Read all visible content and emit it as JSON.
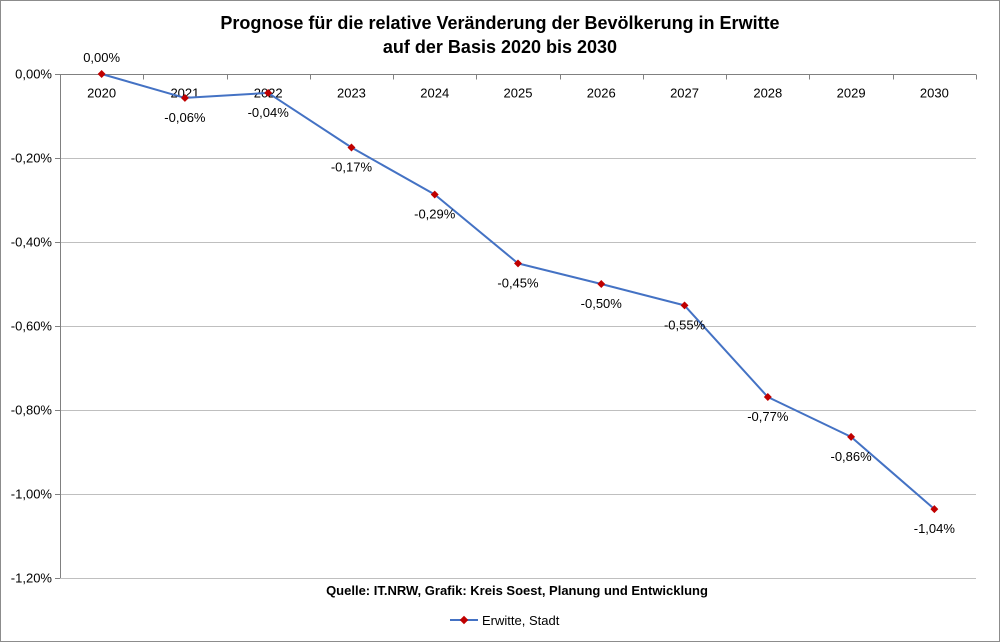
{
  "chart_data": {
    "type": "line",
    "title": "Prognose für die relative Veränderung der Bevölkerung in Erwitte",
    "subtitle": "auf der Basis 2020 bis 2030",
    "categories": [
      "2020",
      "2021",
      "2022",
      "2023",
      "2024",
      "2025",
      "2026",
      "2027",
      "2028",
      "2029",
      "2030"
    ],
    "series": [
      {
        "name": "Erwitte, Stadt",
        "values": [
          0.0,
          -0.057,
          -0.045,
          -0.175,
          -0.287,
          -0.451,
          -0.5,
          -0.551,
          -0.769,
          -0.864,
          -1.036
        ],
        "labels": [
          "0,00%",
          "-0,06%",
          "-0,04%",
          "-0,17%",
          "-0,29%",
          "-0,45%",
          "-0,50%",
          "-0,55%",
          "-0,77%",
          "-0,86%",
          "-1,04%"
        ]
      }
    ],
    "y_ticks": [
      0.0,
      -0.2,
      -0.4,
      -0.6,
      -0.8,
      -1.0,
      -1.2
    ],
    "y_tick_labels": [
      "0,00%",
      "-0,20%",
      "-0,40%",
      "-0,60%",
      "-0,80%",
      "-1,00%",
      "-1,20%"
    ],
    "ylim": [
      -1.2,
      0.0
    ],
    "grid": true,
    "legend_position": "bottom",
    "source_note": "Quelle: IT.NRW, Grafik: Kreis Soest, Planung und Entwicklung",
    "colors": {
      "line": "#4472C4",
      "marker": "#C00000",
      "grid": "#BFBFBF",
      "axis": "#808080"
    }
  }
}
